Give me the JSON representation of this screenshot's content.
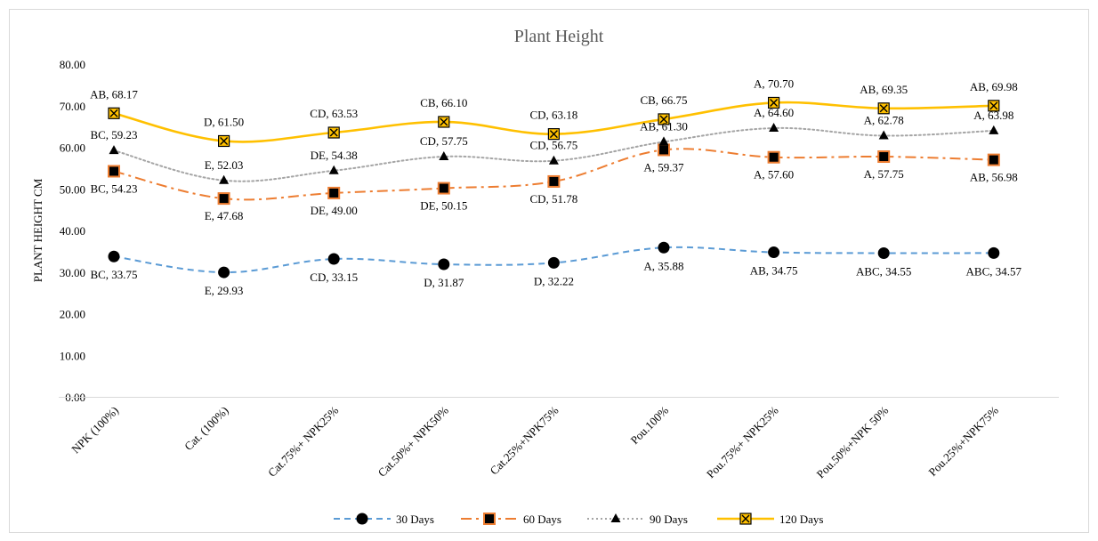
{
  "chart_data": {
    "type": "line",
    "title": "Plant Height",
    "ylabel": "PLANT HEIGHT CM",
    "xlabel": "",
    "ylim": [
      0,
      80
    ],
    "yticks": [
      "0.00",
      "10.00",
      "20.00",
      "30.00",
      "40.00",
      "50.00",
      "60.00",
      "70.00",
      "80.00"
    ],
    "grid": false,
    "legend_position": "bottom",
    "categories": [
      "NPK (100%)",
      "Cat. (100%)",
      "Cat.75%+ NPK25%",
      "Cat.50%+ NPK50%",
      "Cat.25%+NPK75%",
      "Pou.100%",
      "Pou.75%+ NPK25%",
      "Pou.50%+NPK 50%",
      "Pou.25%+NPK75%"
    ],
    "series": [
      {
        "name": "30 Days",
        "color": "#5b9bd5",
        "marker": "circle",
        "dash": "dashed",
        "values": [
          33.75,
          29.93,
          33.15,
          31.87,
          32.22,
          35.88,
          34.75,
          34.55,
          34.57
        ],
        "labels": [
          "BC, 33.75",
          "E, 29.93",
          "CD, 33.15",
          "D, 31.87",
          "D, 32.22",
          "A, 35.88",
          "AB, 34.75",
          "ABC, 34.55",
          "ABC, 34.57"
        ]
      },
      {
        "name": "60 Days",
        "color": "#ed7d31",
        "marker": "square",
        "dash": "dashdot",
        "values": [
          54.23,
          47.68,
          49.0,
          50.15,
          51.78,
          59.37,
          57.6,
          57.75,
          56.98
        ],
        "labels": [
          "BC, 54.23",
          "E, 47.68",
          "DE, 49.00",
          "DE, 50.15",
          "CD, 51.78",
          "A, 59.37",
          "A, 57.60",
          "A, 57.75",
          "AB, 56.98"
        ]
      },
      {
        "name": "90 Days",
        "color": "#a5a5a5",
        "marker": "triangle",
        "dash": "dotted",
        "values": [
          59.23,
          52.03,
          54.38,
          57.75,
          56.75,
          61.3,
          64.6,
          62.78,
          63.98
        ],
        "labels": [
          "BC, 59.23",
          "E, 52.03",
          "DE, 54.38",
          "CD, 57.75",
          "CD, 56.75",
          "AB, 61.30",
          "A, 64.60",
          "A, 62.78",
          "A, 63.98"
        ]
      },
      {
        "name": "120 Days",
        "color": "#ffc000",
        "marker": "xsquare",
        "dash": "solid",
        "values": [
          68.17,
          61.5,
          63.53,
          66.1,
          63.18,
          66.75,
          70.7,
          69.35,
          69.98
        ],
        "labels": [
          "AB, 68.17",
          "D, 61.50",
          "CD, 63.53",
          "CB, 66.10",
          "CD, 63.18",
          "CB, 66.75",
          "A, 70.70",
          "AB, 69.35",
          "AB, 69.98"
        ]
      }
    ]
  }
}
